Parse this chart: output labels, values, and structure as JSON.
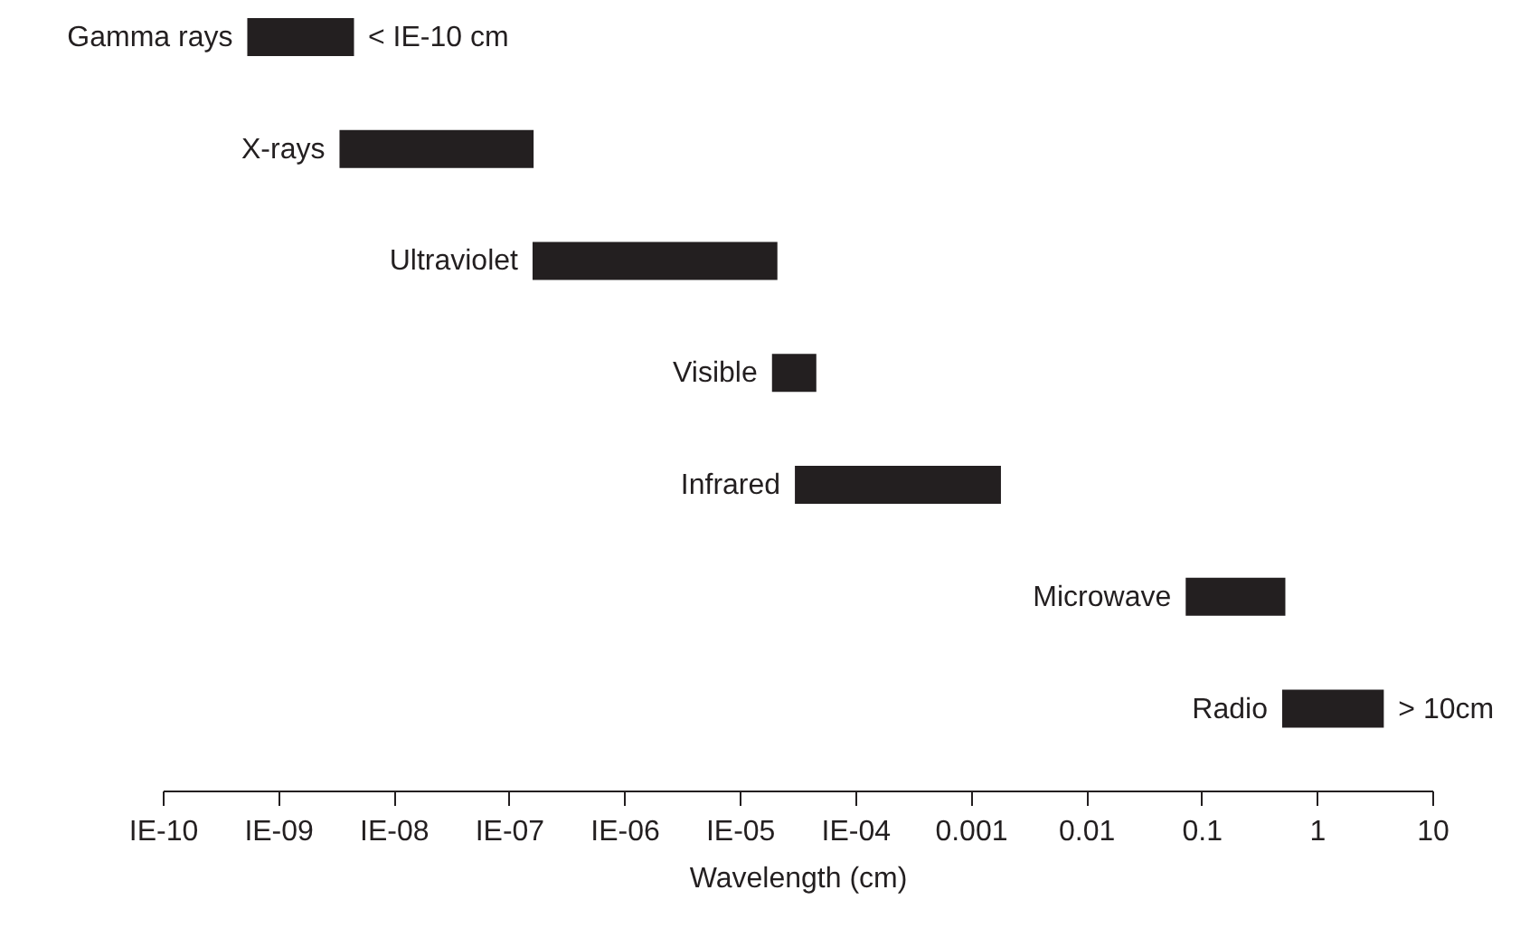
{
  "chart_data": {
    "type": "bar",
    "orientation": "horizontal",
    "log": "x",
    "categories": [
      "Gamma rays",
      "X-rays",
      "Ultraviolet",
      "Visible",
      "Infrared",
      "Microwave",
      "Radio"
    ],
    "base": [
      5.4e-10,
      3.4e-09,
      1.6e-07,
      1.9e-05,
      3e-05,
      0.073,
      0.5
    ],
    "values": [
      4e-09,
      1.6e-07,
      2.1e-05,
      2.7e-05,
      0.0018,
      0.46,
      3.3
    ],
    "color": "#231f20",
    "xlabel": "Wavelength (cm)",
    "xlim": [
      1e-10,
      10
    ],
    "xticks": [
      {
        "value": 1e-10,
        "label": "IE-10"
      },
      {
        "value": 1e-09,
        "label": "IE-09"
      },
      {
        "value": 1e-08,
        "label": "IE-08"
      },
      {
        "value": 1e-07,
        "label": "IE-07"
      },
      {
        "value": 1e-06,
        "label": "IE-06"
      },
      {
        "value": 1e-05,
        "label": "IE-05"
      },
      {
        "value": 0.0001,
        "label": "IE-04"
      },
      0.001,
      0.01,
      0.1,
      1,
      10
    ],
    "annotations": [
      {
        "text": "< IE-10 cm",
        "x": 4.5e-09,
        "y": "Gamma rays"
      },
      {
        "text": "> 10cm",
        "x": 3.8,
        "y": "Radio"
      }
    ],
    "grid": false
  }
}
